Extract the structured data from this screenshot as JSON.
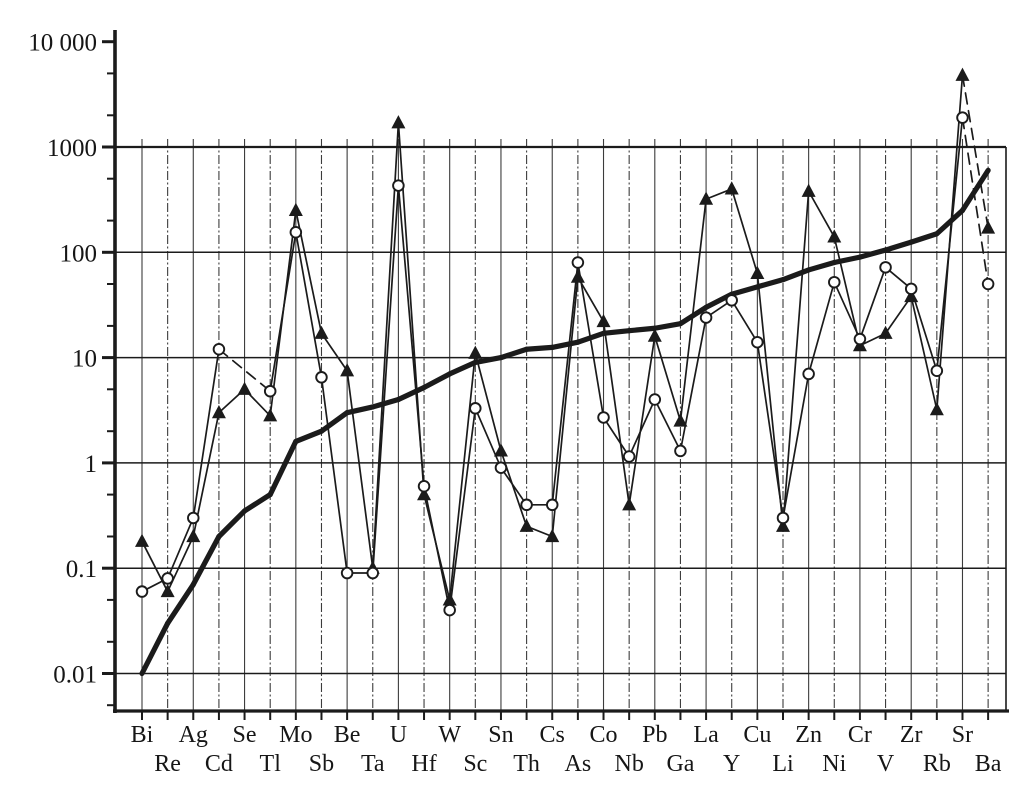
{
  "figure": {
    "kind": "scanned-log-scatter-line-figure",
    "title": "",
    "legend": null
  },
  "chart_data": {
    "type": "line",
    "y_scale": "log",
    "ylim": [
      0.0045,
      12000
    ],
    "grid": true,
    "y_axis": {
      "major_tick_values": [
        10000,
        1000,
        100,
        10,
        1,
        0.1,
        0.01
      ],
      "major_tick_labels": [
        "10 000",
        "1000",
        "100",
        "10",
        "1",
        "0.1",
        "0.01"
      ],
      "minor_tick_multiples": [
        2,
        5
      ]
    },
    "x_label_layout": "staggered-two-rows",
    "categories": [
      "Bi",
      "Re",
      "Ag",
      "Cd",
      "Se",
      "Tl",
      "Mo",
      "Sb",
      "Be",
      "Ta",
      "U",
      "Hf",
      "W",
      "Sc",
      "Sn",
      "Th",
      "Cs",
      "As",
      "Co",
      "Nb",
      "Pb",
      "Ga",
      "La",
      "Y",
      "Cu",
      "Li",
      "Zn",
      "Ni",
      "Cr",
      "V",
      "Zr",
      "Rb",
      "Sr",
      "Ba"
    ],
    "series": [
      {
        "name": "thick-smooth-abundance-curve",
        "marker": "none",
        "line": "thick-solid",
        "values": [
          0.01,
          0.03,
          0.07,
          0.2,
          0.35,
          0.5,
          1.6,
          2,
          3,
          3.4,
          4,
          5.2,
          7,
          9,
          10,
          12,
          12.5,
          14,
          17,
          18,
          19,
          21,
          30,
          40,
          47,
          55,
          68,
          80,
          90,
          105,
          125,
          150,
          250,
          600
        ],
        "dashed_segments": []
      },
      {
        "name": "open-circle-series",
        "marker": "open-circle",
        "line": "thin-solid",
        "values": [
          0.06,
          0.08,
          0.3,
          12,
          null,
          4.8,
          155,
          6.5,
          0.09,
          0.09,
          430,
          0.6,
          0.04,
          3.3,
          0.9,
          0.4,
          0.4,
          80,
          2.7,
          1.15,
          4,
          1.3,
          24,
          35,
          14,
          0.3,
          7,
          52,
          15,
          72,
          45,
          7.5,
          1900,
          50
        ],
        "dashed_segments": [
          [
            "Cd",
            "Tl"
          ],
          [
            "Sr",
            "Ba"
          ]
        ]
      },
      {
        "name": "filled-triangle-series",
        "marker": "filled-triangle",
        "line": "thin-solid",
        "values": [
          0.18,
          0.06,
          0.2,
          3,
          5,
          2.8,
          250,
          17,
          7.5,
          0.1,
          1700,
          0.5,
          0.05,
          11,
          1.3,
          0.25,
          0.2,
          58,
          22,
          0.4,
          16,
          2.5,
          320,
          400,
          63,
          0.25,
          380,
          140,
          13,
          17,
          38,
          3.2,
          4800,
          170
        ],
        "dashed_segments": [
          [
            "Sr",
            "Ba"
          ]
        ]
      }
    ],
    "colors": {
      "ink": "#1b1b1b",
      "paper": "#ffffff"
    }
  }
}
